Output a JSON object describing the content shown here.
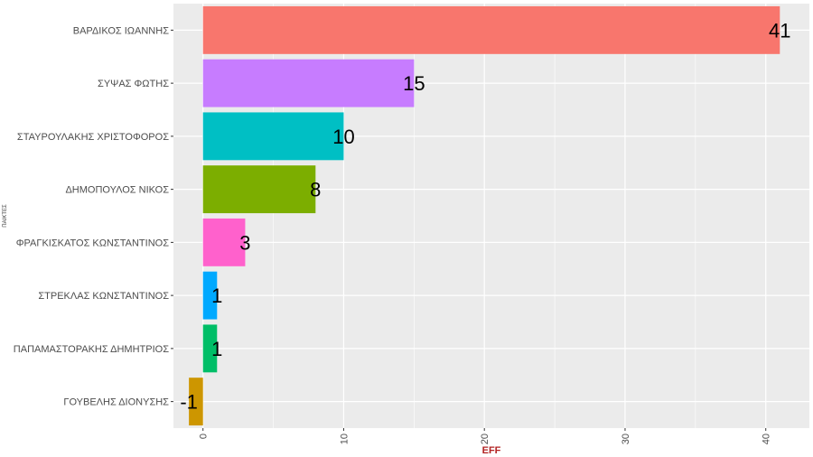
{
  "chart_data": {
    "type": "bar",
    "orientation": "horizontal",
    "categories": [
      "ΒΑΡΔΙΚΟΣ ΙΩΑΝΝΗΣ",
      "ΣΥΨΑΣ ΦΩΤΗΣ",
      "ΣΤΑΥΡΟΥΛΑΚΗΣ ΧΡΙΣΤΟΦΟΡΟΣ",
      "ΔΗΜΟΠΟΥΛΟΣ ΝΙΚΟΣ",
      "ΦΡΑΓΚΙΣΚΑΤΟΣ ΚΩΝΣΤΑΝΤΙΝΟΣ",
      "ΣΤΡΕΚΛΑΣ ΚΩΝΣΤΑΝΤΙΝΟΣ",
      "ΠΑΠΑΜΑΣΤΟΡΑΚΗΣ ΔΗΜΗΤΡΙΟΣ",
      "ΓΟΥΒΕΛΗΣ ΔΙΟΝΥΣΗΣ"
    ],
    "values": [
      41,
      15,
      10,
      8,
      3,
      1,
      1,
      -1
    ],
    "value_labels": [
      "41",
      "15",
      "10",
      "8",
      "3",
      "1",
      "1",
      "-1"
    ],
    "colors": [
      "#F8766D",
      "#C77CFF",
      "#00BFC4",
      "#7CAE00",
      "#FF61CC",
      "#00A9FF",
      "#00BE67",
      "#CD9600"
    ],
    "title": "",
    "xlabel": "EFF",
    "ylabel": "ΠΑΙΚΤΕΣ",
    "xlim": [
      -2.1,
      43.1
    ],
    "xticks": [
      0,
      10,
      20,
      30,
      40
    ],
    "xtick_labels": [
      "0",
      "10",
      "20",
      "30",
      "40"
    ],
    "grid": true,
    "legend": "none",
    "panel_background": "#EBEBEB",
    "grid_color": "#FFFFFF",
    "xlabel_color": "#B22222"
  }
}
